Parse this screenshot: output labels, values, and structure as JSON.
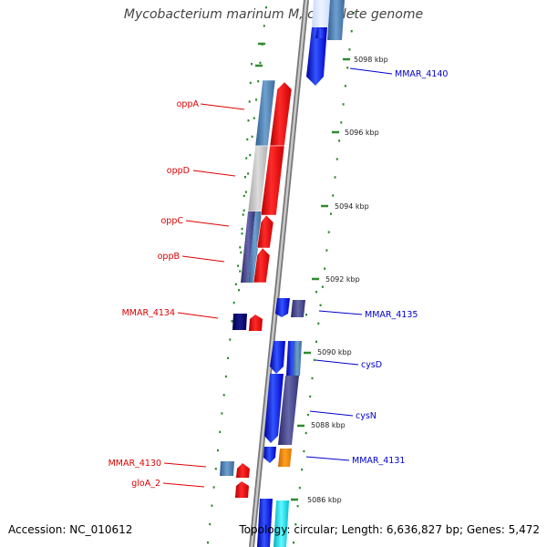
{
  "title": "Mycobacterium marinum M, complete genome",
  "footer": {
    "accession": "Accession: NC_010612",
    "topology": "Topology: circular; Length: 6,636,827 bp; Genes: 5,472"
  },
  "colors": {
    "left_label": "#dd0000",
    "right_label": "#0000cc",
    "tick_dots": "#2e8b2e",
    "backbone": "#8a8a8a"
  },
  "scale_ticks": [
    "5098 kbp",
    "5096 kbp",
    "5094 kbp",
    "5092 kbp",
    "5090 kbp",
    "5088 kbp",
    "5086 kbp"
  ],
  "labels_left": [
    "oppA",
    "oppD",
    "oppC",
    "oppB",
    "MMAR_4134",
    "MMAR_4130",
    "gloA_2"
  ],
  "labels_right": [
    "MMAR_4140",
    "MMAR_4135",
    "cysD",
    "cysN",
    "MMAR_4131"
  ]
}
